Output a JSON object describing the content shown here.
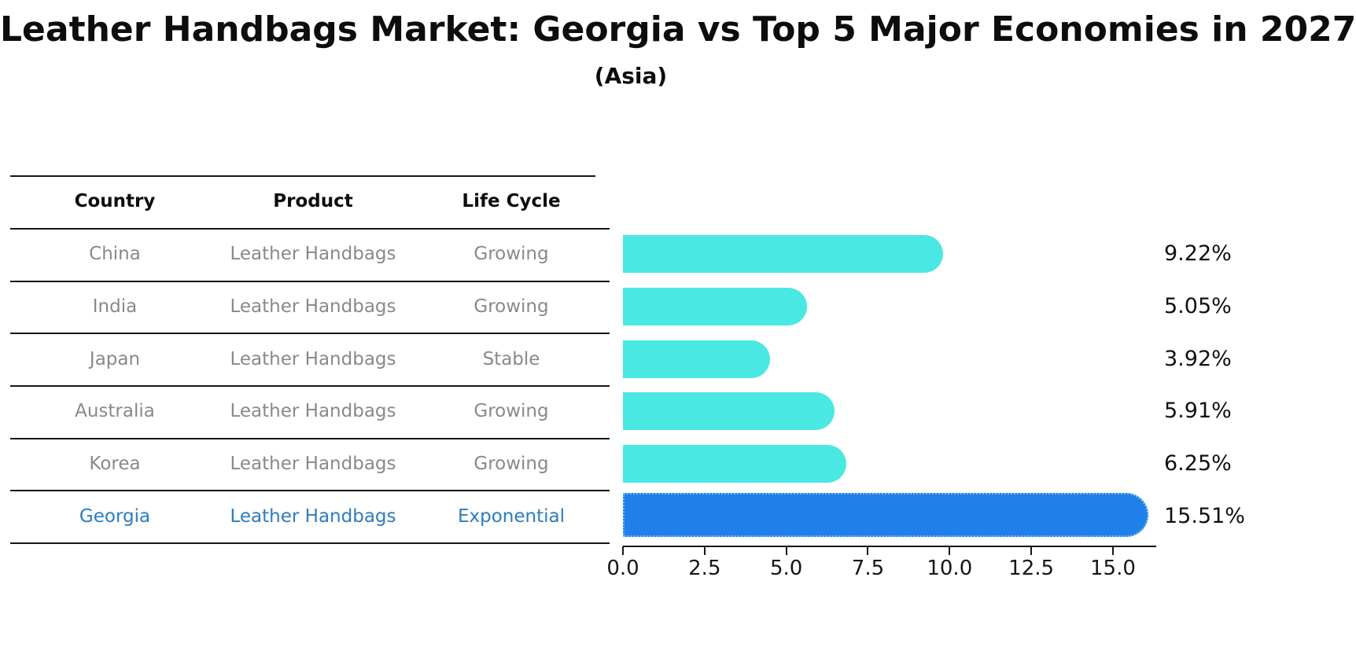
{
  "title": "Leather Handbags Market: Georgia vs Top 5 Major Economies in 2027",
  "subtitle": "(Asia)",
  "table": {
    "headers": [
      "Country",
      "Product",
      "Life Cycle"
    ],
    "rows": [
      {
        "country": "China",
        "product": "Leather Handbags",
        "life_cycle": "Growing",
        "value": 9.22,
        "value_label": "9.22%",
        "highlight": false
      },
      {
        "country": "India",
        "product": "Leather Handbags",
        "life_cycle": "Growing",
        "value": 5.05,
        "value_label": "5.05%",
        "highlight": false
      },
      {
        "country": "Japan",
        "product": "Leather Handbags",
        "life_cycle": "Stable",
        "value": 3.92,
        "value_label": "3.92%",
        "highlight": false
      },
      {
        "country": "Australia",
        "product": "Leather Handbags",
        "life_cycle": "Growing",
        "value": 5.91,
        "value_label": "5.91%",
        "highlight": false
      },
      {
        "country": "Korea",
        "product": "Leather Handbags",
        "life_cycle": "Growing",
        "value": 6.25,
        "value_label": "6.25%",
        "highlight": false
      },
      {
        "country": "Georgia",
        "product": "Leather Handbags",
        "life_cycle": "Exponential",
        "value": 15.51,
        "value_label": "15.51%",
        "highlight": true
      }
    ]
  },
  "chart_data": {
    "type": "bar",
    "orientation": "horizontal",
    "title": "Leather Handbags Market: Georgia vs Top 5 Major Economies in 2027",
    "subtitle": "(Asia)",
    "categories": [
      "China",
      "India",
      "Japan",
      "Australia",
      "Korea",
      "Georgia"
    ],
    "values": [
      9.22,
      5.05,
      3.92,
      5.91,
      6.25,
      15.51
    ],
    "bar_labels": [
      "9.22%",
      "5.05%",
      "3.92%",
      "5.91%",
      "6.25%",
      "15.51%"
    ],
    "x_tick_labels": [
      "0.0",
      "2.5",
      "5.0",
      "7.5",
      "10.0",
      "12.5",
      "15.0"
    ],
    "x_tick_values": [
      0,
      2.5,
      5,
      7.5,
      10,
      12.5,
      15
    ],
    "xlim": [
      0,
      16.3
    ],
    "grid": false,
    "legend": "none",
    "highlight_index": 5,
    "colors": {
      "bar": "#4ae8e2",
      "highlight_bar": "#1e80e8",
      "highlight_border": "#79bbf2",
      "highlight_text": "#2b7ec9",
      "row_text": "#898989",
      "header_text": "#0d0d0d",
      "axis": "#161616"
    }
  }
}
